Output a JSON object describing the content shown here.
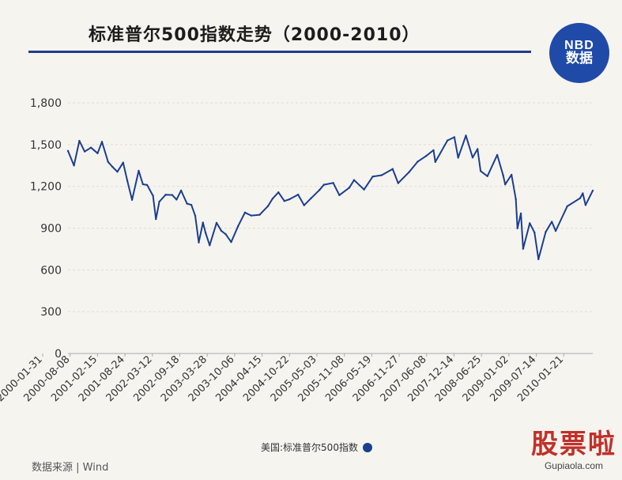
{
  "title": "标准普尔500指数走势（2000-2010）",
  "logo": {
    "line1": "NBD",
    "line2": "数据"
  },
  "legend_label": "美国:标准普尔500指数",
  "source": "数据来源 | Wind",
  "watermark_logo": {
    "line1": "股票啦",
    "line2": "Gupiaola.com"
  },
  "colors": {
    "series": "#1b3f8f",
    "title_rule": "#1b3f8f",
    "logo_bg": "#1f4aa8",
    "grid": "#dcdcdc"
  },
  "chart_data": {
    "type": "line",
    "title": "标准普尔500指数走势（2000-2010）",
    "xlabel": "",
    "ylabel": "",
    "ylim": [
      0,
      1800
    ],
    "y_ticks": [
      0,
      300,
      600,
      900,
      1200,
      1500,
      1800
    ],
    "y_tick_labels": [
      "0",
      "300",
      "600",
      "900",
      "1,200",
      "1,500",
      "1,800"
    ],
    "x_tick_labels": [
      "2000-01-31",
      "2000-08-08",
      "2001-02-15",
      "2001-08-24",
      "2002-03-12",
      "2002-09-18",
      "2003-03-28",
      "2003-10-06",
      "2004-04-15",
      "2004-10-22",
      "2005-05-03",
      "2005-11-08",
      "2006-05-19",
      "2006-11-27",
      "2007-06-08",
      "2007-12-14",
      "2008-06-25",
      "2009-01-02",
      "2009-07-14",
      "2010-01-21"
    ],
    "grid": true,
    "legend_position": "bottom-center",
    "series": [
      {
        "name": "美国:标准普尔500指数",
        "x": [
          "2000-01-03",
          "2000-02-15",
          "2000-03-24",
          "2000-05-01",
          "2000-06-15",
          "2000-08-01",
          "2000-09-01",
          "2000-10-15",
          "2000-11-15",
          "2000-12-20",
          "2001-01-30",
          "2001-03-01",
          "2001-04-04",
          "2001-05-21",
          "2001-06-20",
          "2001-07-20",
          "2001-08-31",
          "2001-09-21",
          "2001-10-15",
          "2001-11-30",
          "2002-01-15",
          "2002-02-15",
          "2002-03-19",
          "2002-04-30",
          "2002-05-31",
          "2002-06-28",
          "2002-07-23",
          "2002-08-22",
          "2002-09-10",
          "2002-10-09",
          "2002-11-27",
          "2002-12-31",
          "2003-01-31",
          "2003-03-11",
          "2003-04-30",
          "2003-06-17",
          "2003-08-01",
          "2003-09-30",
          "2003-11-28",
          "2003-12-31",
          "2004-02-11",
          "2004-03-24",
          "2004-04-30",
          "2004-06-30",
          "2004-08-12",
          "2004-09-30",
          "2004-11-30",
          "2004-12-31",
          "2005-03-07",
          "2005-04-20",
          "2005-06-30",
          "2005-08-03",
          "2005-10-13",
          "2005-12-14",
          "2006-02-15",
          "2006-05-05",
          "2006-06-13",
          "2006-08-31",
          "2006-10-31",
          "2006-12-29",
          "2007-02-20",
          "2007-03-05",
          "2007-05-31",
          "2007-07-19",
          "2007-08-15",
          "2007-10-09",
          "2007-11-26",
          "2007-12-31",
          "2008-01-22",
          "2008-03-10",
          "2008-05-19",
          "2008-06-30",
          "2008-07-15",
          "2008-08-29",
          "2008-09-29",
          "2008-10-10",
          "2008-11-04",
          "2008-11-20",
          "2009-01-06",
          "2009-02-09",
          "2009-03-09",
          "2009-04-30",
          "2009-06-12",
          "2009-07-10",
          "2009-09-30",
          "2009-12-31",
          "2010-01-19",
          "2010-02-08",
          "2010-03-31"
        ],
        "values": [
          1455,
          1350,
          1527,
          1450,
          1478,
          1438,
          1520,
          1375,
          1340,
          1305,
          1370,
          1240,
          1103,
          1312,
          1215,
          1210,
          1133,
          965,
          1090,
          1140,
          1138,
          1105,
          1170,
          1076,
          1067,
          989,
          797,
          940,
          865,
          777,
          938,
          880,
          856,
          800,
          916,
          1012,
          990,
          996,
          1058,
          1112,
          1157,
          1095,
          1107,
          1141,
          1064,
          1114,
          1174,
          1212,
          1225,
          1137,
          1191,
          1245,
          1177,
          1270,
          1280,
          1325,
          1223,
          1304,
          1378,
          1418,
          1460,
          1375,
          1530,
          1553,
          1406,
          1565,
          1407,
          1468,
          1310,
          1273,
          1426,
          1280,
          1214,
          1283,
          1107,
          899,
          1005,
          752,
          935,
          868,
          677,
          873,
          946,
          880,
          1057,
          1115,
          1150,
          1066,
          1169
        ]
      }
    ]
  }
}
